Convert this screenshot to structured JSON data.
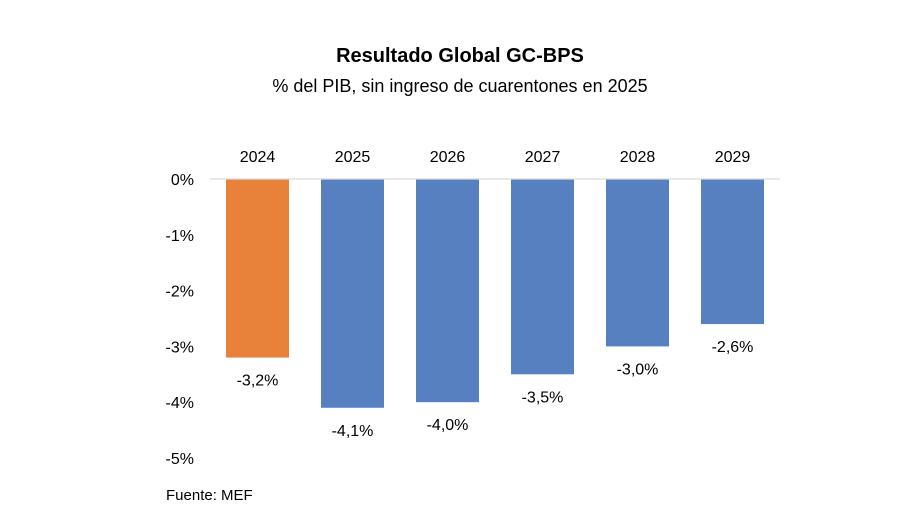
{
  "chart_data": {
    "type": "bar",
    "title": "Resultado Global GC-BPS",
    "subtitle": "% del PIB, sin ingreso de cuarentones en 2025",
    "categories": [
      "2024",
      "2025",
      "2026",
      "2027",
      "2028",
      "2029"
    ],
    "values": [
      -3.2,
      -4.1,
      -4.0,
      -3.5,
      -3.0,
      -2.6
    ],
    "value_labels": [
      "-3,2%",
      "-4,1%",
      "-4,0%",
      "-3,5%",
      "-3,0%",
      "-2,6%"
    ],
    "bar_colors": [
      "#E8823A",
      "#5680BF",
      "#5680BF",
      "#5680BF",
      "#5680BF",
      "#5680BF"
    ],
    "ylim": [
      -5,
      0
    ],
    "yticks": [
      0,
      -1,
      -2,
      -3,
      -4,
      -5
    ],
    "ytick_labels": [
      "0%",
      "-1%",
      "-2%",
      "-3%",
      "-4%",
      "-5%"
    ],
    "xlabel": "",
    "ylabel": "",
    "category_labels_position": "top",
    "legend": "none",
    "grid": false,
    "source": "Fuente: MEF"
  }
}
